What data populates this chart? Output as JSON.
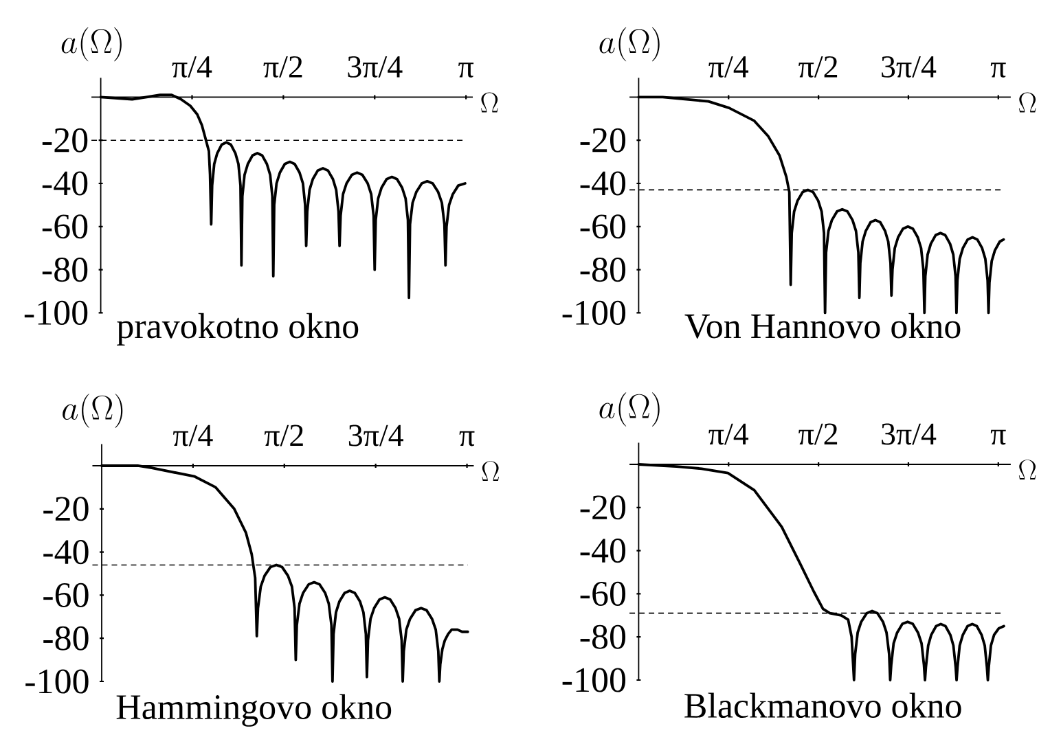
{
  "chart_data": [
    {
      "type": "line",
      "title": "pravokotno okno",
      "xlabel": "\\Omega",
      "ylabel": "a(\\Omega)",
      "color": "#000000",
      "x": [
        0,
        0.27,
        0.51,
        0.61,
        0.69,
        0.77,
        0.83,
        0.87,
        0.9,
        0.93,
        0.94,
        0.95,
        0.958,
        0.976,
        1.002,
        1.041,
        1.08,
        1.119,
        1.158,
        1.184,
        1.202,
        1.21,
        1.218,
        1.237,
        1.265,
        1.306,
        1.347,
        1.388,
        1.429,
        1.457,
        1.476,
        1.484,
        1.492,
        1.512,
        1.541,
        1.583,
        1.626,
        1.668,
        1.71,
        1.739,
        1.758,
        1.767,
        1.776,
        1.796,
        1.824,
        1.867,
        1.911,
        1.954,
        1.997,
        2.025,
        2.045,
        2.054,
        2.063,
        2.084,
        2.114,
        2.16,
        2.205,
        2.25,
        2.296,
        2.326,
        2.347,
        2.356,
        2.365,
        2.386,
        2.415,
        2.459,
        2.504,
        2.548,
        2.592,
        2.622,
        2.642,
        2.651,
        2.66,
        2.682,
        2.714,
        2.761,
        2.808,
        2.855,
        2.902,
        2.934,
        2.956,
        2.965,
        2.974,
        2.996,
        3.028,
        3.075,
        3.134
      ],
      "values": [
        0,
        -1,
        1,
        1,
        -1,
        -4,
        -8,
        -13,
        -19,
        -25,
        -36,
        -59,
        -41,
        -31,
        -26,
        -22,
        -21,
        -22,
        -26,
        -31,
        -41,
        -78,
        -46,
        -36,
        -31,
        -27,
        -26,
        -27,
        -31,
        -36,
        -46,
        -83,
        -50,
        -40,
        -35,
        -31,
        -30,
        -31,
        -35,
        -40,
        -50,
        -69,
        -53,
        -43,
        -38,
        -34,
        -33,
        -34,
        -38,
        -43,
        -53,
        -69,
        -55,
        -45,
        -40,
        -36,
        -35,
        -36,
        -40,
        -45,
        -55,
        -80,
        -57,
        -47,
        -42,
        -38,
        -37,
        -38,
        -42,
        -47,
        -57,
        -93,
        -59,
        -49,
        -44,
        -40,
        -39,
        -40,
        -44,
        -49,
        -59,
        -78,
        -60,
        -50,
        -45,
        -41,
        -40
      ],
      "xlim": [
        -0.08,
        3.2
      ],
      "ylim": [
        -100,
        9
      ],
      "xticks": [
        {
          "value": 0.7854,
          "label": "π/4"
        },
        {
          "value": 1.5708,
          "label": "π/2"
        },
        {
          "value": 2.3562,
          "label": "3π/4"
        },
        {
          "value": 3.1416,
          "label": "π"
        }
      ],
      "yticks": [
        -100,
        -80,
        -60,
        -40,
        -20
      ],
      "ref_lines": [
        {
          "axis": "y",
          "value": -20,
          "line_style": "dashed"
        }
      ]
    },
    {
      "type": "line",
      "title": "Von Hannovo okno",
      "xlabel": "\\Omega",
      "ylabel": "a(\\Omega)",
      "color": "#000000",
      "x": [
        0,
        0.21,
        0.41,
        0.61,
        0.79,
        1.01,
        1.13,
        1.23,
        1.29,
        1.316,
        1.328,
        1.337,
        1.358,
        1.388,
        1.433,
        1.478,
        1.523,
        1.568,
        1.598,
        1.619,
        1.628,
        1.637,
        1.658,
        1.688,
        1.733,
        1.778,
        1.823,
        1.868,
        1.898,
        1.919,
        1.928,
        1.936,
        1.956,
        1.984,
        2.026,
        2.068,
        2.11,
        2.152,
        2.18,
        2.2,
        2.208,
        2.217,
        2.237,
        2.266,
        2.309,
        2.352,
        2.395,
        2.438,
        2.467,
        2.487,
        2.496,
        2.504,
        2.524,
        2.552,
        2.594,
        2.636,
        2.678,
        2.72,
        2.748,
        2.768,
        2.776,
        2.784,
        2.804,
        2.832,
        2.874,
        2.916,
        2.958,
        3.0,
        3.028,
        3.048,
        3.056,
        3.064,
        3.084,
        3.112,
        3.154,
        3.188
      ],
      "values": [
        0,
        0,
        -1,
        -2,
        -5,
        -11,
        -18,
        -27,
        -37,
        -44,
        -87,
        -63,
        -53,
        -48,
        -44,
        -43,
        -44,
        -48,
        -53,
        -63,
        -100,
        -72,
        -62,
        -57,
        -53,
        -52,
        -53,
        -57,
        -62,
        -72,
        -93,
        -77,
        -67,
        -62,
        -58,
        -57,
        -58,
        -62,
        -67,
        -77,
        -92,
        -80,
        -70,
        -65,
        -61,
        -60,
        -61,
        -65,
        -70,
        -80,
        -100,
        -83,
        -73,
        -68,
        -64,
        -63,
        -64,
        -68,
        -73,
        -83,
        -100,
        -85,
        -75,
        -70,
        -66,
        -65,
        -66,
        -70,
        -75,
        -85,
        -100,
        -86,
        -76,
        -71,
        -67,
        -66
      ],
      "xlim": [
        -0.08,
        3.25
      ],
      "ylim": [
        -100,
        9
      ],
      "xticks": [
        {
          "value": 0.7854,
          "label": "π/4"
        },
        {
          "value": 1.5708,
          "label": "π/2"
        },
        {
          "value": 2.3562,
          "label": "3π/4"
        },
        {
          "value": 3.1416,
          "label": "π"
        }
      ],
      "yticks": [
        -100,
        -80,
        -60,
        -40,
        -20
      ],
      "ref_lines": [
        {
          "axis": "y",
          "value": -43,
          "line_style": "dashed"
        }
      ]
    },
    {
      "type": "line",
      "title": "Hammingovo okno",
      "xlabel": "\\Omega",
      "ylabel": "a(\\Omega)",
      "color": "#000000",
      "x": [
        0,
        0.31,
        0.43,
        0.8,
        0.98,
        1.14,
        1.24,
        1.29,
        1.32,
        1.334,
        1.344,
        1.368,
        1.401,
        1.451,
        1.502,
        1.552,
        1.602,
        1.636,
        1.659,
        1.669,
        1.678,
        1.701,
        1.732,
        1.78,
        1.827,
        1.874,
        1.922,
        1.953,
        1.976,
        1.985,
        1.994,
        2.015,
        2.044,
        2.089,
        2.133,
        2.177,
        2.222,
        2.251,
        2.272,
        2.281,
        2.29,
        2.312,
        2.343,
        2.389,
        2.435,
        2.481,
        2.527,
        2.558,
        2.58,
        2.589,
        2.598,
        2.62,
        2.652,
        2.699,
        2.747,
        2.794,
        2.841,
        2.873,
        2.895,
        2.904,
        2.912,
        2.93,
        2.951,
        2.98,
        3.01,
        3.06,
        3.1,
        3.149
      ],
      "values": [
        0,
        0,
        -1,
        -5,
        -10,
        -20,
        -31,
        -41,
        -52,
        -79,
        -66,
        -56,
        -51,
        -47,
        -46,
        -47,
        -51,
        -56,
        -66,
        -90,
        -74,
        -64,
        -59,
        -55,
        -54,
        -55,
        -59,
        -64,
        -74,
        -100,
        -78,
        -68,
        -63,
        -59,
        -58,
        -59,
        -63,
        -68,
        -78,
        -98,
        -81,
        -71,
        -66,
        -62,
        -61,
        -62,
        -66,
        -71,
        -81,
        -100,
        -86,
        -76,
        -71,
        -67,
        -66,
        -67,
        -71,
        -76,
        -86,
        -100,
        -92,
        -85,
        -81,
        -78,
        -76,
        -76,
        -77,
        -77
      ],
      "xlim": [
        -0.08,
        3.2
      ],
      "ylim": [
        -100,
        10
      ],
      "xticks": [
        {
          "value": 0.7854,
          "label": "π/4"
        },
        {
          "value": 1.5708,
          "label": "π/2"
        },
        {
          "value": 2.3562,
          "label": "3π/4"
        },
        {
          "value": 3.1416,
          "label": "π"
        }
      ],
      "yticks": [
        -100,
        -80,
        -60,
        -40,
        -20
      ],
      "ref_lines": [
        {
          "axis": "y",
          "value": -46,
          "line_style": "dashed"
        }
      ]
    },
    {
      "type": "line",
      "title": "Blackmanovo okno",
      "xlabel": "\\Omega",
      "ylabel": "a(\\Omega)",
      "color": "#000000",
      "x": [
        0,
        0.33,
        0.55,
        0.78,
        1.01,
        1.25,
        1.41,
        1.53,
        1.61,
        1.67,
        1.77,
        1.83,
        1.86,
        1.881,
        1.891,
        1.913,
        1.944,
        1.992,
        2.039,
        2.086,
        2.134,
        2.165,
        2.188,
        2.197,
        2.206,
        2.227,
        2.258,
        2.303,
        2.349,
        2.395,
        2.44,
        2.471,
        2.492,
        2.501,
        2.509,
        2.529,
        2.556,
        2.598,
        2.639,
        2.68,
        2.722,
        2.749,
        2.769,
        2.777,
        2.785,
        2.804,
        2.832,
        2.873,
        2.914,
        2.954,
        2.995,
        3.023,
        3.042,
        3.05,
        3.058,
        3.077,
        3.105,
        3.146,
        3.19
      ],
      "values": [
        0,
        -1,
        -2,
        -4,
        -12,
        -29,
        -46,
        -59,
        -67,
        -69,
        -70,
        -72,
        -80,
        -100,
        -88,
        -78,
        -73,
        -69,
        -68,
        -69,
        -73,
        -78,
        -88,
        -100,
        -93,
        -83,
        -78,
        -74,
        -73,
        -74,
        -78,
        -83,
        -93,
        -100,
        -94,
        -84,
        -79,
        -75,
        -74,
        -75,
        -79,
        -84,
        -94,
        -100,
        -94,
        -84,
        -79,
        -75,
        -74,
        -75,
        -79,
        -84,
        -94,
        -100,
        -94,
        -84,
        -79,
        -76,
        -75
      ],
      "xlim": [
        -0.08,
        3.25
      ],
      "ylim": [
        -100,
        10
      ],
      "xticks": [
        {
          "value": 0.7854,
          "label": "π/4"
        },
        {
          "value": 1.5708,
          "label": "π/2"
        },
        {
          "value": 2.3562,
          "label": "3π/4"
        },
        {
          "value": 3.1416,
          "label": "π"
        }
      ],
      "yticks": [
        -100,
        -80,
        -60,
        -40,
        -20
      ],
      "ref_lines": [
        {
          "axis": "y",
          "value": -69,
          "line_style": "dashed"
        }
      ]
    }
  ]
}
